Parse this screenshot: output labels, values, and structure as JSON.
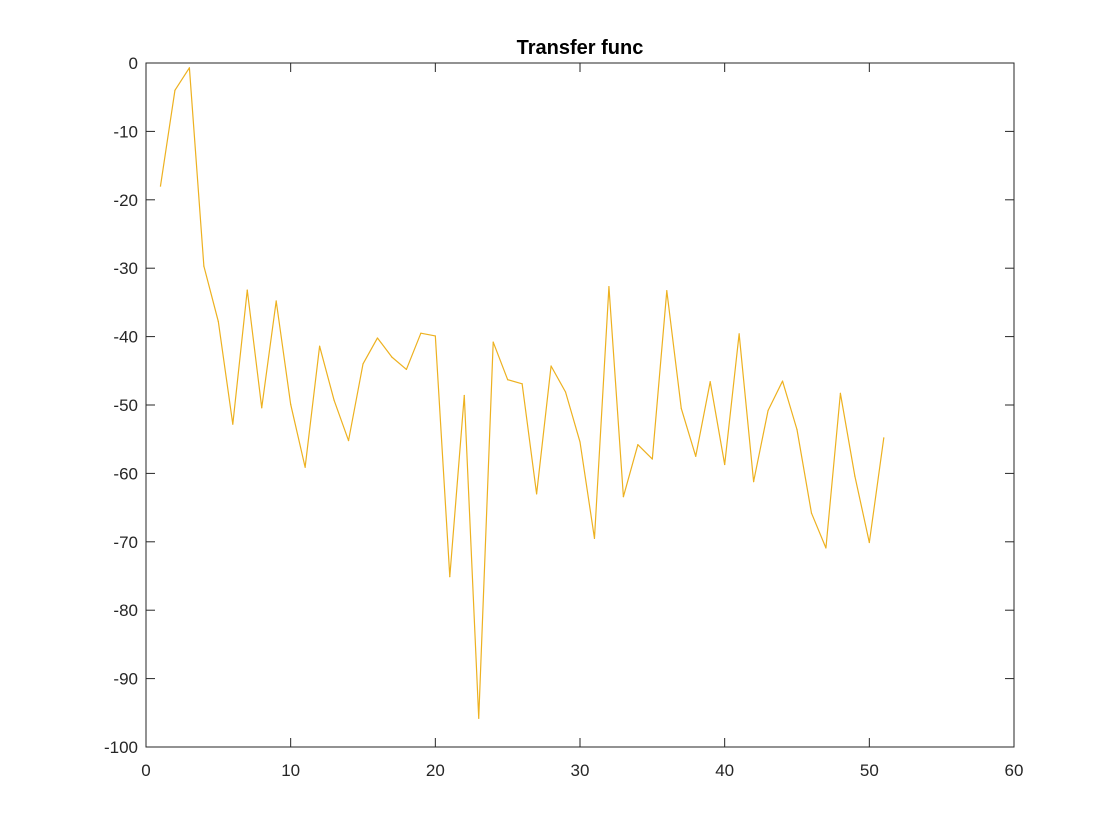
{
  "chart_data": {
    "type": "line",
    "title": "Transfer func",
    "xlabel": "",
    "ylabel": "",
    "xlim": [
      0,
      60
    ],
    "ylim": [
      -100,
      0
    ],
    "xticks": [
      0,
      10,
      20,
      30,
      40,
      50,
      60
    ],
    "yticks": [
      0,
      -10,
      -20,
      -30,
      -40,
      -50,
      -60,
      -70,
      -80,
      -90,
      -100
    ],
    "grid": false,
    "legend": false,
    "line_color": "#EDB120",
    "series": [
      {
        "x": [
          1,
          2,
          3,
          4,
          5,
          6,
          7,
          8,
          9,
          10,
          11,
          12,
          13,
          14,
          15,
          16,
          17,
          18,
          19,
          20,
          21,
          22,
          23,
          24,
          25,
          26,
          27,
          28,
          29,
          30,
          31,
          32,
          33,
          34,
          35,
          36,
          37,
          38,
          39,
          40,
          41,
          42,
          43,
          44,
          45,
          46,
          47,
          48,
          49,
          50,
          51
        ],
        "values": [
          -18,
          -4,
          -0.7,
          -29.7,
          -37.8,
          -52.8,
          -33.2,
          -50.4,
          -34.8,
          -49.9,
          -59.1,
          -41.4,
          -49.3,
          -55.2,
          -44,
          -40.2,
          -43,
          -44.8,
          -39.5,
          -39.9,
          -75.1,
          -48.6,
          -95.8,
          -40.8,
          -46.3,
          -46.9,
          -63,
          -44.3,
          -48.1,
          -55.4,
          -69.5,
          -32.7,
          -63.4,
          -55.8,
          -57.9,
          -33.3,
          -50.5,
          -57.5,
          -46.6,
          -58.7,
          -39.6,
          -61.2,
          -50.8,
          -46.5,
          -53.6,
          -65.8,
          -70.9,
          -48.3,
          -60.4,
          -70.1,
          -54.8
        ]
      }
    ]
  }
}
